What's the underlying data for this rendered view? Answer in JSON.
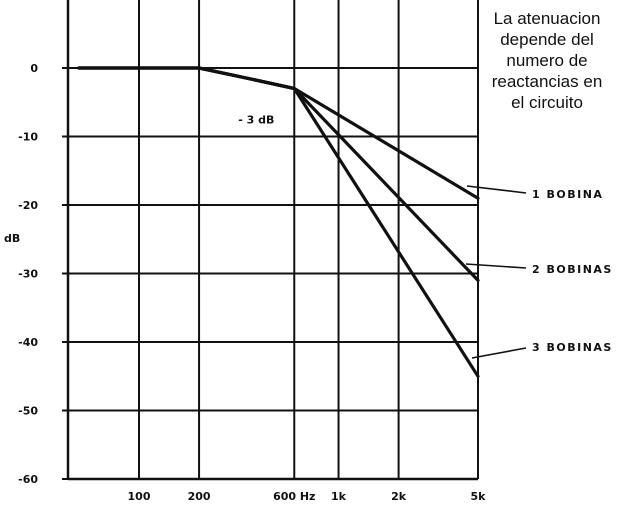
{
  "annotation": {
    "lines": [
      "La atenuacion",
      "depende del",
      "numero de",
      "reactancias en",
      "el circuito"
    ]
  },
  "chart_data": {
    "type": "line",
    "title": "",
    "xlabel": "",
    "ylabel": "dB",
    "xscale": "log",
    "grid": true,
    "x_ticks": [
      {
        "value": 100,
        "label": "100"
      },
      {
        "value": 200,
        "label": "200"
      },
      {
        "value": 600,
        "label": "600 Hz"
      },
      {
        "value": 1000,
        "label": "1k"
      },
      {
        "value": 2000,
        "label": "2k"
      },
      {
        "value": 5000,
        "label": "5k"
      }
    ],
    "y_ticks": [
      {
        "value": 0,
        "label": "0"
      },
      {
        "value": -10,
        "label": "-10"
      },
      {
        "value": -20,
        "label": "-20"
      },
      {
        "value": -30,
        "label": "-30"
      },
      {
        "value": -40,
        "label": "-40"
      },
      {
        "value": -50,
        "label": "-50"
      },
      {
        "value": -60,
        "label": "-60"
      }
    ],
    "ylim": [
      -60,
      10
    ],
    "series": [
      {
        "name": "1 BOBINA",
        "x": [
          50,
          200,
          350,
          600,
          5000
        ],
        "y": [
          0,
          0,
          -1.5,
          -3,
          -19
        ]
      },
      {
        "name": "2 BOBINAS",
        "x": [
          50,
          200,
          350,
          600,
          5000
        ],
        "y": [
          0,
          0,
          -1.5,
          -3,
          -31
        ]
      },
      {
        "name": "3 BOBINAS",
        "x": [
          50,
          200,
          350,
          600,
          5000
        ],
        "y": [
          0,
          0,
          -1.5,
          -3,
          -45
        ]
      }
    ],
    "point_annotation": {
      "label": "- 3 dB",
      "x": 600,
      "y": -3
    }
  }
}
